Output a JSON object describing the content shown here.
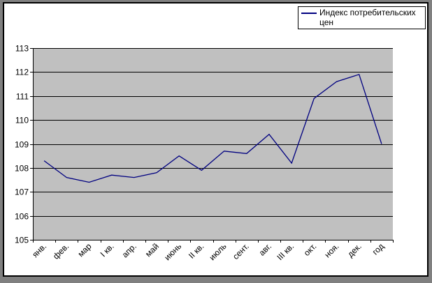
{
  "window": {
    "surround_color": "#808080",
    "panel_bg": "#ffffff",
    "panel_border_color": "#000000"
  },
  "legend": {
    "label": "Индекс потребительских цен",
    "line_color": "#000080",
    "position": "top-right"
  },
  "chart_data": {
    "type": "line",
    "title": "",
    "xlabel": "",
    "ylabel": "",
    "categories": [
      "янв.",
      "фев.",
      "мар",
      "I кв.",
      "апр.",
      "май",
      "июнь",
      "II кв.",
      "июль",
      "сент.",
      "авг.",
      "III кв.",
      "окт.",
      "ноя.",
      "дек.",
      "год"
    ],
    "series": [
      {
        "name": "Индекс потребительских цен",
        "color": "#000080",
        "values": [
          108.3,
          107.6,
          107.4,
          107.7,
          107.6,
          107.8,
          108.5,
          107.9,
          108.7,
          108.6,
          109.4,
          108.2,
          110.9,
          111.6,
          111.9,
          109.0
        ]
      }
    ],
    "ylim": [
      105,
      113
    ],
    "yticks": [
      105,
      106,
      107,
      108,
      109,
      110,
      111,
      112,
      113
    ],
    "grid": true,
    "gridline_color": "#000000",
    "plot_bg": "#c0c0c0",
    "axis_color": "#000000",
    "legend_position": "top-right",
    "x_label_rotation": -45
  }
}
